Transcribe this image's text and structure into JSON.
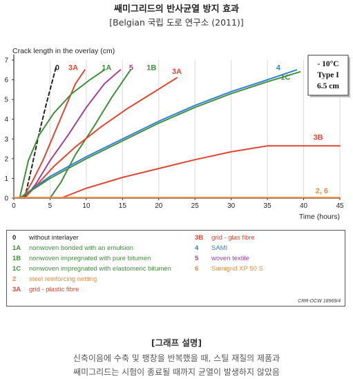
{
  "header": {
    "title": "쌔미그리드의 반사균열 방지 효과",
    "subtitle": "[Belgian 국립  도로 연구소 (2011)]"
  },
  "colors": {
    "black": "#222222",
    "green": "#3f8f3a",
    "red": "#e2452f",
    "orange": "#f08a3a",
    "purple": "#a23f9a",
    "blue": "#2f7fd6",
    "grid": "#d9d9d9"
  },
  "chart_data": {
    "type": "line",
    "ylabel": "Crack length in the overlay (cm)",
    "xlabel": "Time (hours)",
    "xlim": [
      0,
      45
    ],
    "ylim": [
      0,
      7
    ],
    "xticks": [
      0,
      5,
      10,
      15,
      20,
      25,
      30,
      35,
      40,
      45
    ],
    "yticks": [
      0,
      1,
      2,
      3,
      4,
      5,
      6,
      7
    ],
    "grid": "vertical",
    "conditions": [
      "- 10°C",
      "Type I",
      "6.5 cm"
    ],
    "series": [
      {
        "name": "0",
        "color": "#222222",
        "dashed": true,
        "x": [
          1.5,
          2.5,
          3.5,
          4.5,
          5.8
        ],
        "y": [
          0,
          1.6,
          3.3,
          4.8,
          6.6
        ],
        "label_x": 6.0,
        "label_y": 6.5
      },
      {
        "name": "3A",
        "color": "#e2452f",
        "x": [
          1.2,
          2.5,
          4,
          5.5,
          7,
          8.5,
          9.8
        ],
        "y": [
          0,
          0.8,
          1.9,
          3.2,
          4.5,
          5.8,
          6.5
        ],
        "label_x": 8.2,
        "label_y": 6.5
      },
      {
        "name": "1A",
        "color": "#3f8f3a",
        "x": [
          0.8,
          2,
          3.5,
          5.5,
          8,
          10.5,
          12.5
        ],
        "y": [
          0,
          1.9,
          3.2,
          4.3,
          5.3,
          6.0,
          6.5
        ],
        "label_x": 12.8,
        "label_y": 6.5
      },
      {
        "name": "5",
        "color": "#a23f9a",
        "x": [
          1.5,
          3,
          5,
          7.5,
          10,
          12.5,
          14.7
        ],
        "y": [
          0,
          0.7,
          1.9,
          3.2,
          4.6,
          5.8,
          6.5
        ],
        "label_x": 16.2,
        "label_y": 6.5
      },
      {
        "name": "1B",
        "color": "#3f8f3a",
        "x": [
          5,
          6.5,
          8.5,
          11,
          13.5,
          16.1
        ],
        "y": [
          0,
          0.8,
          2.2,
          3.6,
          5.1,
          6.5
        ],
        "label_x": 19.0,
        "label_y": 6.5
      },
      {
        "name": "3A",
        "color": "#e2452f",
        "x": [
          1.5,
          3,
          5.5,
          8.5,
          12,
          15.5,
          19,
          22.5
        ],
        "y": [
          0,
          0.6,
          1.6,
          2.6,
          3.6,
          4.5,
          5.3,
          6.1
        ],
        "label_x": 22.5,
        "label_y": 6.3
      },
      {
        "name": "3B",
        "color": "#e2452f",
        "x": [
          6.5,
          10,
          15,
          20,
          25,
          30,
          35,
          40,
          45
        ],
        "y": [
          0,
          0.5,
          1.05,
          1.5,
          1.95,
          2.35,
          2.65,
          2.65,
          2.65
        ],
        "label_x": 42.0,
        "label_y": 2.95
      },
      {
        "name": "4",
        "color": "#2f7fd6",
        "x": [
          0.8,
          5,
          10,
          15,
          20,
          25,
          30,
          35,
          39
        ],
        "y": [
          0,
          1.1,
          2.1,
          3.0,
          3.9,
          4.7,
          5.4,
          6.0,
          6.5
        ],
        "label_x": 36.5,
        "label_y": 6.5
      },
      {
        "name": "1C",
        "color": "#3f8f3a",
        "x": [
          0.8,
          5,
          10,
          15,
          20,
          25,
          30,
          35,
          39.5
        ],
        "y": [
          0,
          1.0,
          2.0,
          2.9,
          3.8,
          4.6,
          5.3,
          5.9,
          6.4
        ],
        "label_x": 37.5,
        "label_y": 6.0
      },
      {
        "name": "2, 6",
        "color": "#f08a3a",
        "x": [
          0,
          45
        ],
        "y": [
          0.03,
          0.03
        ],
        "label_x": 42.5,
        "label_y": 0.25
      }
    ]
  },
  "legend": {
    "items": [
      {
        "code": "0",
        "text": "without interlayer",
        "color": "#222222"
      },
      {
        "code": "1A",
        "text": "nonwoven bonded with an emulsion",
        "color": "#3f8f3a"
      },
      {
        "code": "1B",
        "text": "nonwoven impregnated with pure bitumen",
        "color": "#3f8f3a"
      },
      {
        "code": "1C",
        "text": "nonwoven impregnated with elastomeric bitumen",
        "color": "#3f8f3a"
      },
      {
        "code": "2",
        "text": "steel reinforcing netting",
        "color": "#f08a3a"
      },
      {
        "code": "3A",
        "text": "grid - plastic fibre",
        "color": "#e2452f"
      },
      {
        "code": "3B",
        "text": "grid - glas fibre",
        "color": "#e2452f"
      },
      {
        "code": "4",
        "text": "SAMI",
        "color": "#2f7fd6"
      },
      {
        "code": "5",
        "text": "woven textile",
        "color": "#a23f9a"
      },
      {
        "code": "6",
        "text": "Samigrid XP 50 S",
        "color": "#f08a3a"
      }
    ],
    "ref": "CRR-OCW 18969/4"
  },
  "description": {
    "title": "[그래프 설명]",
    "line1": "신축이음에 수축 및 팽창을 반복했을 때, 스틸 재질의 제품과",
    "line2": "쌔미그리드는 시험이 종료될 때까지 균열이 발생하지 않았음"
  }
}
